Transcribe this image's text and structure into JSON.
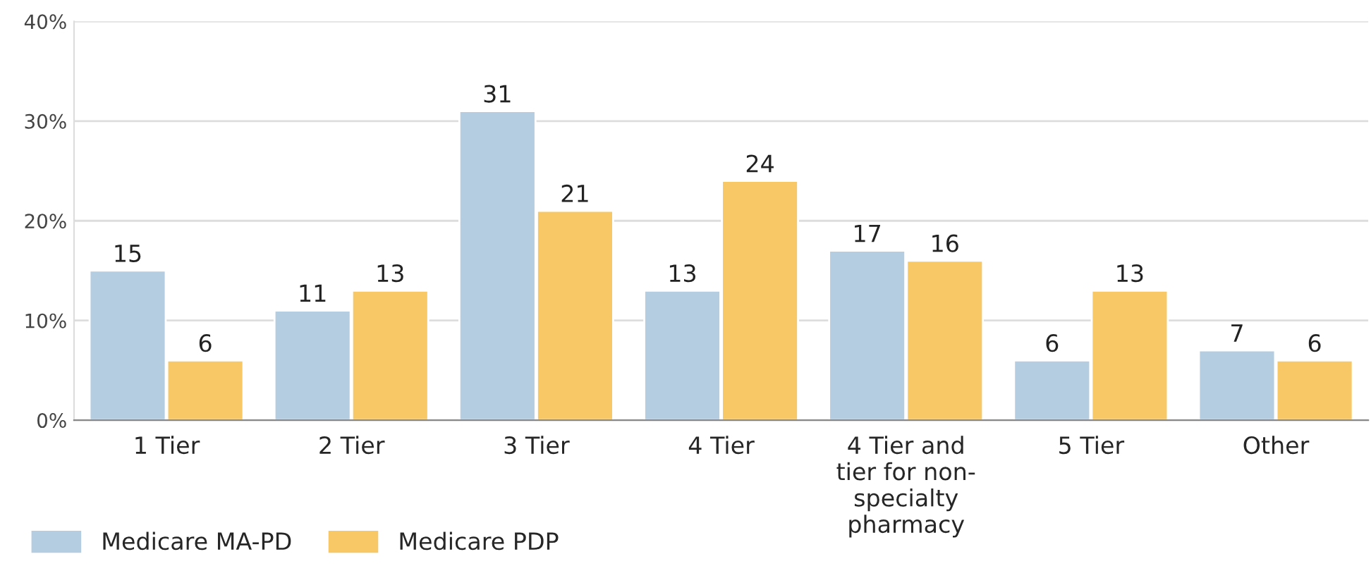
{
  "chart_data": {
    "type": "bar",
    "categories": [
      "1 Tier",
      "2 Tier",
      "3 Tier",
      "4 Tier",
      "4 Tier and\ntier for non-\nspecialty\npharmacy",
      "5 Tier",
      "Other"
    ],
    "series": [
      {
        "name": "Medicare MA-PD",
        "color": "#b4cde0",
        "values": [
          15,
          11,
          31,
          13,
          17,
          6,
          7
        ]
      },
      {
        "name": "Medicare PDP",
        "color": "#f8c866",
        "values": [
          6,
          13,
          21,
          24,
          16,
          13,
          6
        ]
      }
    ],
    "ylim": [
      0,
      40
    ],
    "yticks": [
      {
        "value": 0,
        "label": "0%"
      },
      {
        "value": 10,
        "label": "10%"
      },
      {
        "value": 20,
        "label": "20%"
      },
      {
        "value": 30,
        "label": "30%"
      },
      {
        "value": 40,
        "label": "40%"
      }
    ],
    "grid": "y",
    "legend": "bottom left",
    "data_labels": true
  }
}
